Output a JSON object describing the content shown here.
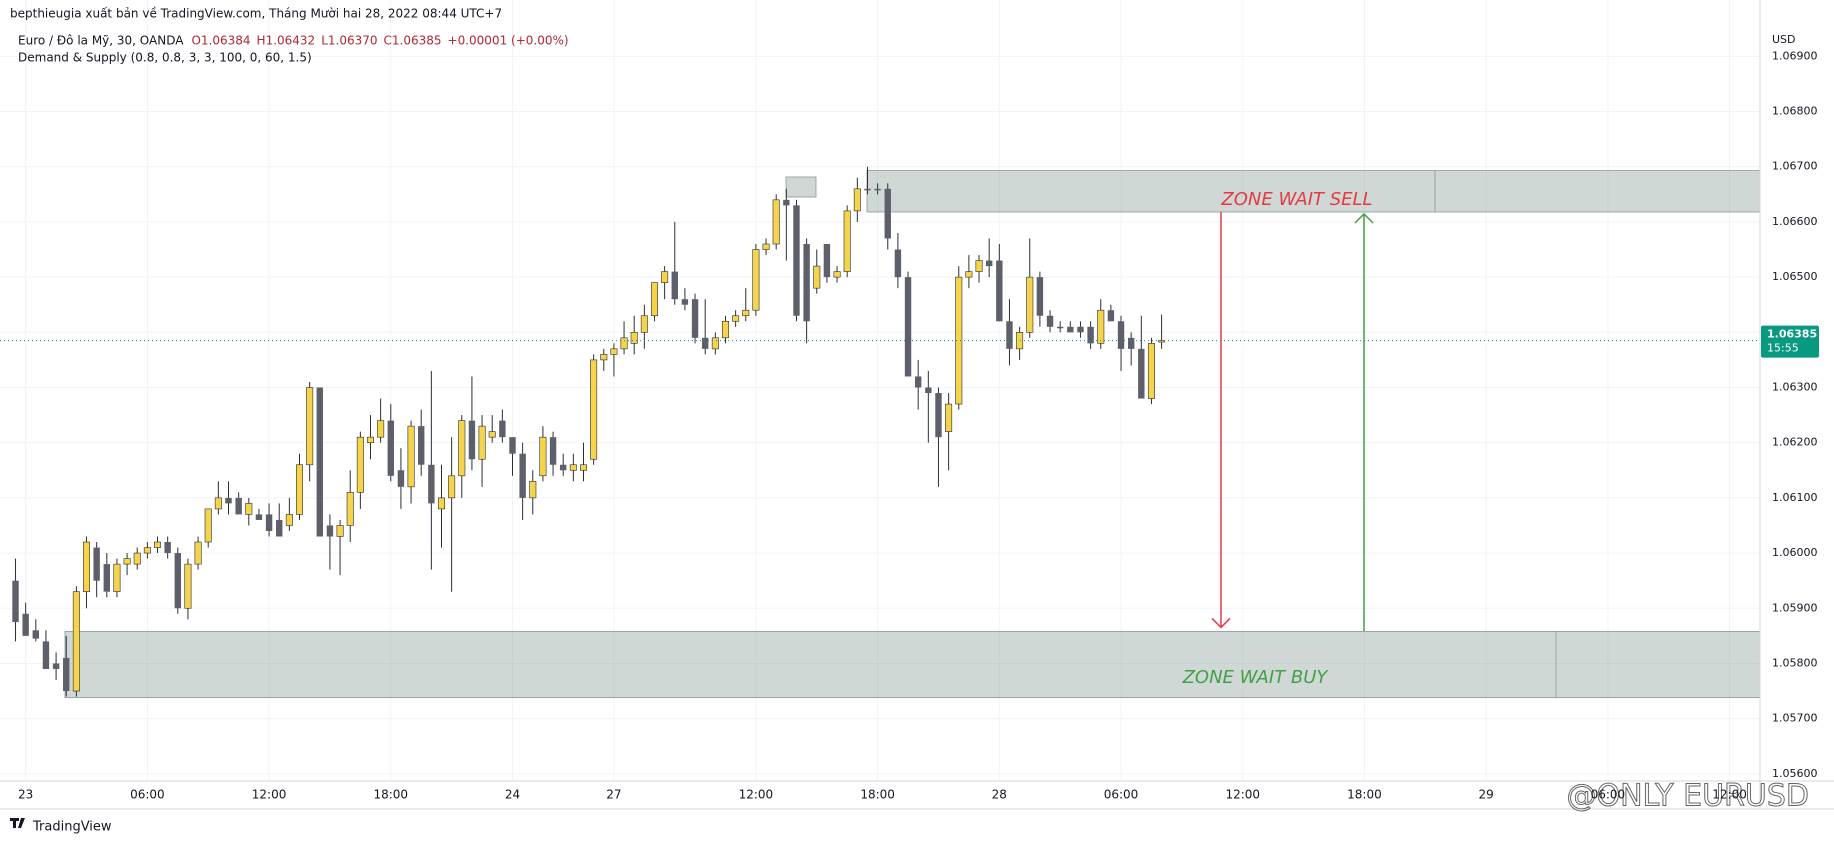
{
  "chart_data": {
    "type": "candlestick",
    "publisher": "bepthieugia xuất bản về TradingView.com, Tháng Mười hai 28, 2022 08:44 UTC+7",
    "symbol": "Euro / Đô la Mỹ, 30, OANDA",
    "ohlc": [
      "O1.06384",
      "H1.06432",
      "L1.06370",
      "C1.06385",
      "+0.00001 (+0.00%)"
    ],
    "indicator": "Demand & Supply (0.8, 0.8, 3, 3, 100, 0, 60, 1.5)",
    "currency": "USD",
    "countdown": "15:55",
    "brand": "TradingView",
    "watermark": "@ONLY EURUSD",
    "bull_color": "#f5d44b",
    "bear_color": "#5d606b",
    "grid": true,
    "x": [
      0,
      1,
      2,
      3,
      4,
      5,
      6,
      7,
      8,
      9,
      10,
      11,
      12,
      13,
      14,
      15,
      16,
      17,
      18,
      19,
      20,
      21,
      22,
      23,
      24,
      25,
      26,
      27,
      28,
      29,
      30,
      31,
      32,
      33,
      34,
      35,
      36,
      37,
      38,
      39,
      40,
      41,
      42,
      43,
      44,
      45,
      46,
      47,
      48,
      49,
      50,
      51,
      52,
      53,
      54,
      55,
      56,
      57,
      58,
      59,
      60,
      61,
      62,
      63,
      64,
      65,
      66,
      67,
      68,
      69,
      70,
      71,
      72,
      73,
      74,
      75,
      76,
      77,
      78,
      79,
      80,
      81,
      82,
      83,
      84,
      85,
      86,
      87,
      88,
      89,
      90,
      91,
      92,
      93,
      94,
      95,
      96,
      97,
      98,
      99,
      100,
      101,
      102,
      103,
      104,
      105,
      106,
      107,
      108,
      109,
      110,
      111,
      112,
      113
    ],
    "open": [
      1.0595,
      1.0589,
      1.0586,
      1.0584,
      1.058,
      1.0581,
      1.0575,
      1.0593,
      1.0601,
      1.0598,
      1.0593,
      1.0598,
      1.0598,
      1.06,
      1.0601,
      1.0602,
      1.06,
      1.059,
      1.0598,
      1.0602,
      1.0608,
      1.061,
      1.061,
      1.0607,
      1.0607,
      1.0607,
      1.0606,
      1.0605,
      1.0607,
      1.0616,
      1.063,
      1.0605,
      1.0603,
      1.0605,
      1.0611,
      1.062,
      1.0621,
      1.0624,
      1.0615,
      1.0612,
      1.0623,
      1.0616,
      1.0608,
      1.061,
      1.0614,
      1.0624,
      1.0617,
      1.0621,
      1.0624,
      1.0621,
      1.0618,
      1.061,
      1.0614,
      1.0621,
      1.0616,
      1.0615,
      1.0615,
      1.0617,
      1.0635,
      1.0636,
      1.0637,
      1.0638,
      1.064,
      1.0643,
      1.0649,
      1.0651,
      1.0646,
      1.0646,
      1.0639,
      1.0637,
      1.0639,
      1.0642,
      1.0643,
      1.0644,
      1.0655,
      1.0656,
      1.0664,
      1.0663,
      1.0656,
      1.0648,
      1.0656,
      1.065,
      1.0651,
      1.0662,
      1.0666,
      1.0666,
      1.0666,
      1.0655,
      1.065,
      1.0632,
      1.063,
      1.0629,
      1.0622,
      1.0627,
      1.065,
      1.0651,
      1.0653,
      1.0653,
      1.0642,
      1.0637,
      1.064,
      1.065,
      1.0643,
      1.0641,
      1.0641,
      1.0641,
      1.0641,
      1.0638,
      1.0644,
      1.0642,
      1.0639,
      1.0637,
      1.0628,
      1.06384
    ],
    "high": [
      1.0599,
      1.0591,
      1.0588,
      1.0586,
      1.0582,
      1.0585,
      1.0594,
      1.0603,
      1.0602,
      1.06,
      1.0599,
      1.06,
      1.0601,
      1.0602,
      1.0603,
      1.0603,
      1.0601,
      1.0599,
      1.0603,
      1.0608,
      1.0613,
      1.0613,
      1.0611,
      1.061,
      1.0608,
      1.0609,
      1.0609,
      1.061,
      1.0618,
      1.0631,
      1.063,
      1.0607,
      1.0606,
      1.0615,
      1.0622,
      1.0625,
      1.0628,
      1.0627,
      1.0619,
      1.0624,
      1.0626,
      1.0633,
      1.0616,
      1.0621,
      1.0625,
      1.0632,
      1.0625,
      1.0625,
      1.0626,
      1.0621,
      1.062,
      1.0615,
      1.0623,
      1.0622,
      1.0618,
      1.0618,
      1.062,
      1.0636,
      1.0637,
      1.0638,
      1.0642,
      1.0643,
      1.0645,
      1.0649,
      1.0652,
      1.066,
      1.0648,
      1.0647,
      1.0646,
      1.064,
      1.0643,
      1.0644,
      1.0648,
      1.0656,
      1.0657,
      1.0665,
      1.0666,
      1.0664,
      1.0657,
      1.0655,
      1.0656,
      1.0652,
      1.0663,
      1.0668,
      1.067,
      1.0667,
      1.0667,
      1.0658,
      1.0651,
      1.0635,
      1.0633,
      1.063,
      1.0629,
      1.0652,
      1.0654,
      1.0654,
      1.0657,
      1.0656,
      1.0646,
      1.0641,
      1.0657,
      1.0651,
      1.0644,
      1.0642,
      1.0642,
      1.0642,
      1.0642,
      1.0646,
      1.0645,
      1.0643,
      1.064,
      1.0643,
      1.0639,
      1.06432
    ],
    "low": [
      1.0584,
      1.0585,
      1.0584,
      1.0579,
      1.0577,
      1.0574,
      1.0574,
      1.059,
      1.0592,
      1.0592,
      1.0592,
      1.0596,
      1.0597,
      1.0599,
      1.06,
      1.0599,
      1.0589,
      1.0588,
      1.0597,
      1.0601,
      1.0607,
      1.0607,
      1.0607,
      1.0605,
      1.0606,
      1.0603,
      1.0603,
      1.0604,
      1.0606,
      1.0613,
      1.0603,
      1.0597,
      1.0596,
      1.0602,
      1.0608,
      1.0617,
      1.062,
      1.0613,
      1.0608,
      1.0609,
      1.0614,
      1.0597,
      1.0601,
      1.0593,
      1.061,
      1.0615,
      1.0612,
      1.062,
      1.062,
      1.0614,
      1.0606,
      1.0607,
      1.0613,
      1.0614,
      1.0614,
      1.0613,
      1.0613,
      1.0616,
      1.0633,
      1.0632,
      1.0636,
      1.0636,
      1.0637,
      1.0642,
      1.0646,
      1.0645,
      1.0644,
      1.0638,
      1.0636,
      1.0636,
      1.0638,
      1.0641,
      1.0642,
      1.0643,
      1.0654,
      1.0655,
      1.0653,
      1.0642,
      1.0638,
      1.0647,
      1.0649,
      1.0649,
      1.065,
      1.066,
      1.0665,
      1.0665,
      1.0655,
      1.0648,
      1.0632,
      1.0626,
      1.062,
      1.0612,
      1.0615,
      1.0626,
      1.0648,
      1.0649,
      1.065,
      1.0642,
      1.0634,
      1.0635,
      1.0639,
      1.0641,
      1.064,
      1.064,
      1.064,
      1.0639,
      1.0637,
      1.0637,
      1.0642,
      1.0633,
      1.0634,
      1.0628,
      1.0627,
      1.0637
    ],
    "close": [
      1.05875,
      1.0585,
      1.05845,
      1.0579,
      1.0579,
      1.0575,
      1.0593,
      1.0602,
      1.0595,
      1.0593,
      1.0598,
      1.0599,
      1.06,
      1.0601,
      1.0602,
      1.06,
      1.059,
      1.0598,
      1.0602,
      1.0608,
      1.061,
      1.0609,
      1.0607,
      1.0609,
      1.0606,
      1.0604,
      1.0603,
      1.0607,
      1.0616,
      1.063,
      1.0603,
      1.0603,
      1.0605,
      1.0611,
      1.0621,
      1.0621,
      1.0624,
      1.0614,
      1.0612,
      1.0623,
      1.0616,
      1.0609,
      1.061,
      1.0614,
      1.0624,
      1.0617,
      1.0623,
      1.0622,
      1.0621,
      1.0618,
      1.061,
      1.0613,
      1.0621,
      1.0616,
      1.0615,
      1.0616,
      1.0616,
      1.0635,
      1.0636,
      1.0637,
      1.0639,
      1.064,
      1.0643,
      1.0649,
      1.0651,
      1.0646,
      1.0645,
      1.0639,
      1.0637,
      1.0639,
      1.0642,
      1.0643,
      1.0644,
      1.0655,
      1.0656,
      1.0664,
      1.0663,
      1.0643,
      1.0642,
      1.0652,
      1.065,
      1.0651,
      1.0662,
      1.0666,
      1.0666,
      1.0666,
      1.0657,
      1.065,
      1.0632,
      1.063,
      1.0629,
      1.0621,
      1.0627,
      1.065,
      1.0651,
      1.0653,
      1.0652,
      1.0642,
      1.0637,
      1.064,
      1.065,
      1.0643,
      1.0641,
      1.0641,
      1.064,
      1.064,
      1.0638,
      1.0644,
      1.0642,
      1.0637,
      1.0637,
      1.0628,
      1.0638,
      1.06385
    ],
    "xlim": [
      -1.53,
      172.0
    ],
    "xticks": [
      {
        "value": 1,
        "label": "23"
      },
      {
        "value": 13,
        "label": "06:00"
      },
      {
        "value": 25,
        "label": "12:00"
      },
      {
        "value": 37,
        "label": "18:00"
      },
      {
        "value": 49,
        "label": "24"
      },
      {
        "value": 59,
        "label": "27"
      },
      {
        "value": 73,
        "label": "12:00"
      },
      {
        "value": 85,
        "label": "18:00"
      },
      {
        "value": 97,
        "label": "28"
      },
      {
        "value": 109,
        "label": "06:00"
      },
      {
        "value": 121,
        "label": "12:00"
      },
      {
        "value": 133,
        "label": "18:00"
      },
      {
        "value": 145,
        "label": "29"
      },
      {
        "value": 157,
        "label": "06:00"
      },
      {
        "value": 169,
        "label": "12:00"
      }
    ],
    "ylim": [
      1.05587,
      1.06955
    ],
    "yticks": [
      {
        "value": 1.056,
        "label": "1.05600"
      },
      {
        "value": 1.057,
        "label": "1.05700"
      },
      {
        "value": 1.058,
        "label": "1.05800"
      },
      {
        "value": 1.059,
        "label": "1.05900"
      },
      {
        "value": 1.06,
        "label": "1.06000"
      },
      {
        "value": 1.061,
        "label": "1.06100"
      },
      {
        "value": 1.062,
        "label": "1.06200"
      },
      {
        "value": 1.063,
        "label": "1.06300"
      },
      {
        "value": 1.064,
        "label": "1.06400"
      },
      {
        "value": 1.065,
        "label": "1.06500"
      },
      {
        "value": 1.066,
        "label": "1.06600"
      },
      {
        "value": 1.067,
        "label": "1.06700"
      },
      {
        "value": 1.068,
        "label": "1.06800"
      },
      {
        "value": 1.069,
        "label": "1.06900"
      }
    ],
    "zones": [
      {
        "label": "ZONE WAIT SELL",
        "low": 1.06618,
        "high": 1.06693,
        "color": "#e53945"
      },
      {
        "label": "ZONE WAIT BUY",
        "low": 1.05738,
        "high": 1.05858,
        "color": "#43a047"
      }
    ]
  }
}
